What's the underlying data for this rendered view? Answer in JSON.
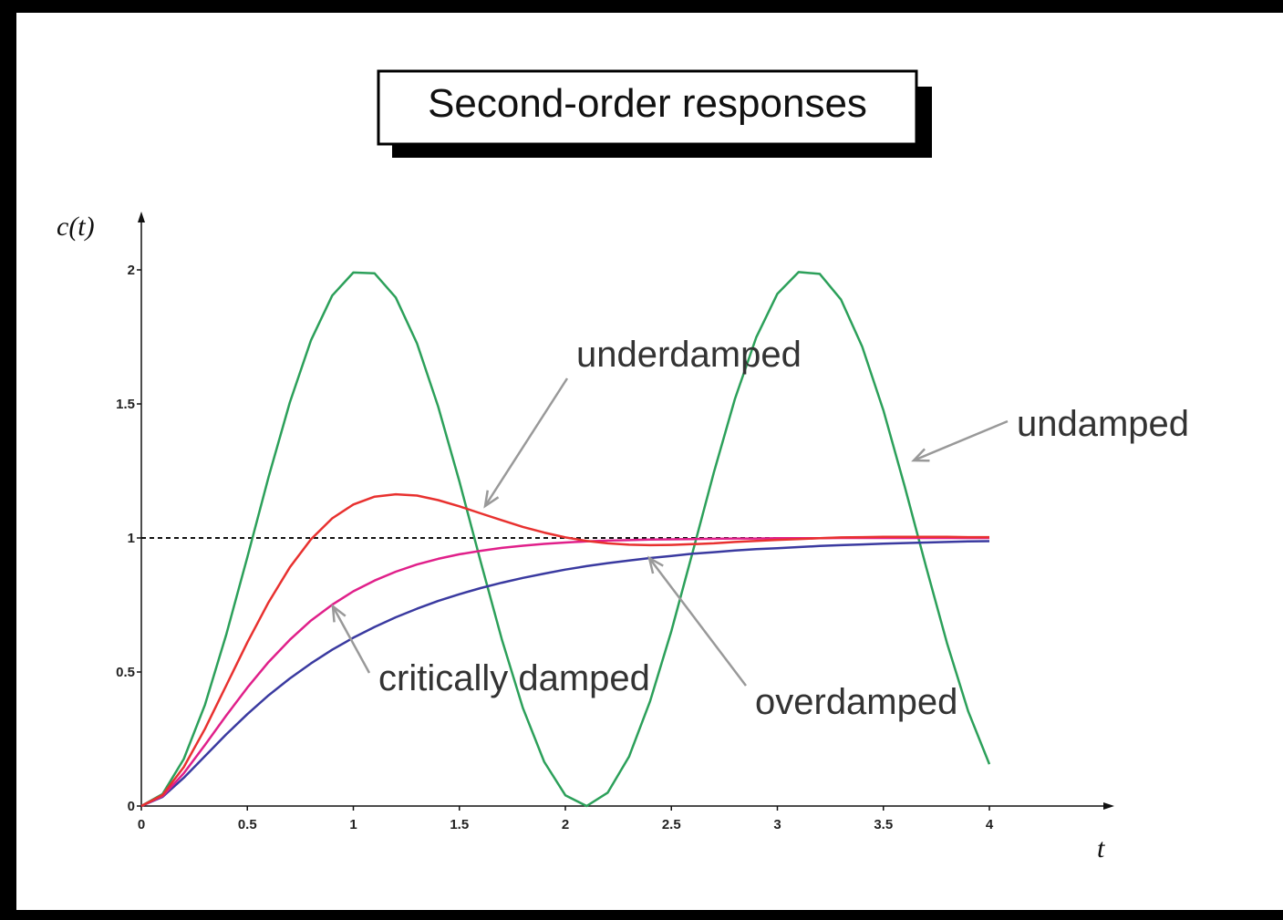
{
  "chart_data": {
    "type": "line",
    "title": "Second-order responses",
    "x_label": "t",
    "y_label": "c(t)",
    "x": [
      0,
      0.1,
      0.2,
      0.3,
      0.4,
      0.5,
      0.6,
      0.7,
      0.8,
      0.9,
      1,
      1.1,
      1.2,
      1.3,
      1.4,
      1.5,
      1.6,
      1.7,
      1.8,
      1.9,
      2,
      2.1,
      2.2,
      2.3,
      2.4,
      2.5,
      2.6,
      2.7,
      2.8,
      2.9,
      3,
      3.1,
      3.2,
      3.3,
      3.4,
      3.5,
      3.6,
      3.7,
      3.8,
      3.9,
      4
    ],
    "series": [
      {
        "name": "undamped",
        "color": "#2ca05a",
        "values": [
          0,
          0.045,
          0.175,
          0.378,
          0.638,
          0.929,
          1.227,
          1.505,
          1.737,
          1.904,
          1.99,
          1.987,
          1.897,
          1.726,
          1.49,
          1.211,
          0.913,
          0.622,
          0.365,
          0.165,
          0.04,
          0,
          0.05,
          0.184,
          0.392,
          0.653,
          0.946,
          1.244,
          1.519,
          1.748,
          1.911,
          1.992,
          1.985,
          1.889,
          1.714,
          1.476,
          1.194,
          0.896,
          0.608,
          0.353,
          0.156
        ]
      },
      {
        "name": "underdamped",
        "color": "#e8312f",
        "values": [
          0,
          0.041,
          0.145,
          0.288,
          0.449,
          0.611,
          0.76,
          0.89,
          0.995,
          1.073,
          1.125,
          1.154,
          1.163,
          1.158,
          1.141,
          1.118,
          1.092,
          1.066,
          1.041,
          1.02,
          1.002,
          0.989,
          0.98,
          0.975,
          0.973,
          0.974,
          0.977,
          0.98,
          0.985,
          0.989,
          0.993,
          0.996,
          0.999,
          1.002,
          1.003,
          1.004,
          1.004,
          1.004,
          1.004,
          1.003,
          1.003
        ]
      },
      {
        "name": "critically damped",
        "color": "#e0208a",
        "values": [
          0,
          0.037,
          0.122,
          0.228,
          0.337,
          0.442,
          0.537,
          0.62,
          0.692,
          0.751,
          0.801,
          0.841,
          0.874,
          0.901,
          0.922,
          0.939,
          0.952,
          0.963,
          0.971,
          0.978,
          0.983,
          0.987,
          0.99,
          0.992,
          0.994,
          0.995,
          0.996,
          0.997,
          0.998,
          0.998,
          0.999,
          0.999,
          0.999,
          1,
          1,
          1,
          1,
          1,
          1,
          1,
          1
        ]
      },
      {
        "name": "overdamped",
        "color": "#3a3aa0",
        "values": [
          0,
          0.034,
          0.105,
          0.186,
          0.267,
          0.343,
          0.413,
          0.476,
          0.532,
          0.583,
          0.628,
          0.668,
          0.704,
          0.736,
          0.765,
          0.79,
          0.813,
          0.833,
          0.851,
          0.867,
          0.882,
          0.895,
          0.906,
          0.916,
          0.925,
          0.933,
          0.941,
          0.947,
          0.953,
          0.958,
          0.962,
          0.966,
          0.97,
          0.973,
          0.976,
          0.979,
          0.981,
          0.983,
          0.985,
          0.987,
          0.988
        ]
      }
    ],
    "reference_line": 1,
    "xlim": [
      0,
      4
    ],
    "ylim": [
      0,
      2
    ],
    "xticks": [
      0,
      0.5,
      1,
      1.5,
      2,
      2.5,
      3,
      3.5,
      4
    ],
    "yticks": [
      0,
      0.5,
      1,
      1.5,
      2
    ],
    "grid": false
  }
}
